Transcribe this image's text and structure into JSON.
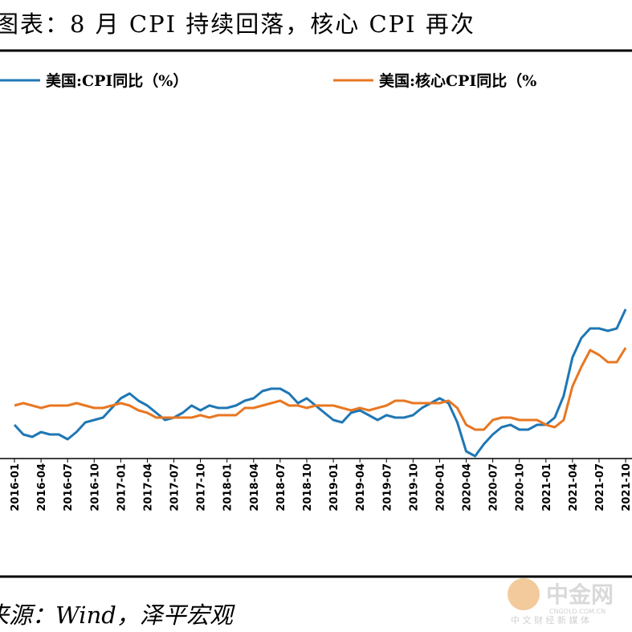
{
  "chart_data": {
    "type": "line",
    "title": "图表：8 月 CPI 持续回落，核心 CPI 再次",
    "source": "来源：Wind，泽平宏观",
    "watermark": {
      "logo": "中金网",
      "site": "CNGOLD.COM.CN",
      "slogan": "中 文 财 经 新 媒 体"
    },
    "categories": [
      "2016-01",
      null,
      null,
      "2016-04",
      null,
      null,
      "2016-07",
      null,
      null,
      "2016-10",
      null,
      null,
      "2017-01",
      null,
      null,
      "2017-04",
      null,
      null,
      "2017-07",
      null,
      null,
      "2017-10",
      null,
      null,
      "2018-01",
      null,
      null,
      "2018-04",
      null,
      null,
      "2018-07",
      null,
      null,
      "2018-10",
      null,
      null,
      "2019-01",
      null,
      null,
      "2019-04",
      null,
      null,
      "2019-07",
      null,
      null,
      "2019-10",
      null,
      null,
      "2020-01",
      null,
      null,
      "2020-04",
      null,
      null,
      "2020-07",
      null,
      null,
      "2020-10",
      null,
      null,
      "2021-01",
      null,
      null,
      "2021-04",
      null,
      null,
      "2021-07",
      null,
      null,
      "2021-10"
    ],
    "series": [
      {
        "name": "美国:CPI同比（%）",
        "color": "#1f77b4",
        "values": [
          1.4,
          1.0,
          0.9,
          1.1,
          1.0,
          1.0,
          0.8,
          1.1,
          1.5,
          1.6,
          1.7,
          2.1,
          2.5,
          2.7,
          2.4,
          2.2,
          1.9,
          1.6,
          1.7,
          1.9,
          2.2,
          2.0,
          2.2,
          2.1,
          2.1,
          2.2,
          2.4,
          2.5,
          2.8,
          2.9,
          2.9,
          2.7,
          2.3,
          2.5,
          2.2,
          1.9,
          1.6,
          1.5,
          1.9,
          2.0,
          1.8,
          1.6,
          1.8,
          1.7,
          1.7,
          1.8,
          2.1,
          2.3,
          2.5,
          2.3,
          1.5,
          0.3,
          0.1,
          0.6,
          1.0,
          1.3,
          1.4,
          1.2,
          1.2,
          1.4,
          1.4,
          1.7,
          2.6,
          4.2,
          5.0,
          5.4,
          5.4,
          5.3,
          5.4,
          6.2
        ]
      },
      {
        "name": "美国:核心CPI同比（%",
        "color": "#e87722",
        "values": [
          2.2,
          2.3,
          2.2,
          2.1,
          2.2,
          2.2,
          2.2,
          2.3,
          2.2,
          2.1,
          2.1,
          2.2,
          2.3,
          2.2,
          2.0,
          1.9,
          1.7,
          1.7,
          1.7,
          1.7,
          1.7,
          1.8,
          1.7,
          1.8,
          1.8,
          1.8,
          2.1,
          2.1,
          2.2,
          2.3,
          2.4,
          2.2,
          2.2,
          2.1,
          2.2,
          2.2,
          2.2,
          2.1,
          2.0,
          2.1,
          2.0,
          2.1,
          2.2,
          2.4,
          2.4,
          2.3,
          2.3,
          2.3,
          2.3,
          2.4,
          2.1,
          1.4,
          1.2,
          1.2,
          1.6,
          1.7,
          1.7,
          1.6,
          1.6,
          1.6,
          1.4,
          1.3,
          1.6,
          3.0,
          3.8,
          4.5,
          4.3,
          4.0,
          4.0,
          4.6
        ]
      }
    ],
    "ylim": [
      0,
      16.7
    ]
  }
}
